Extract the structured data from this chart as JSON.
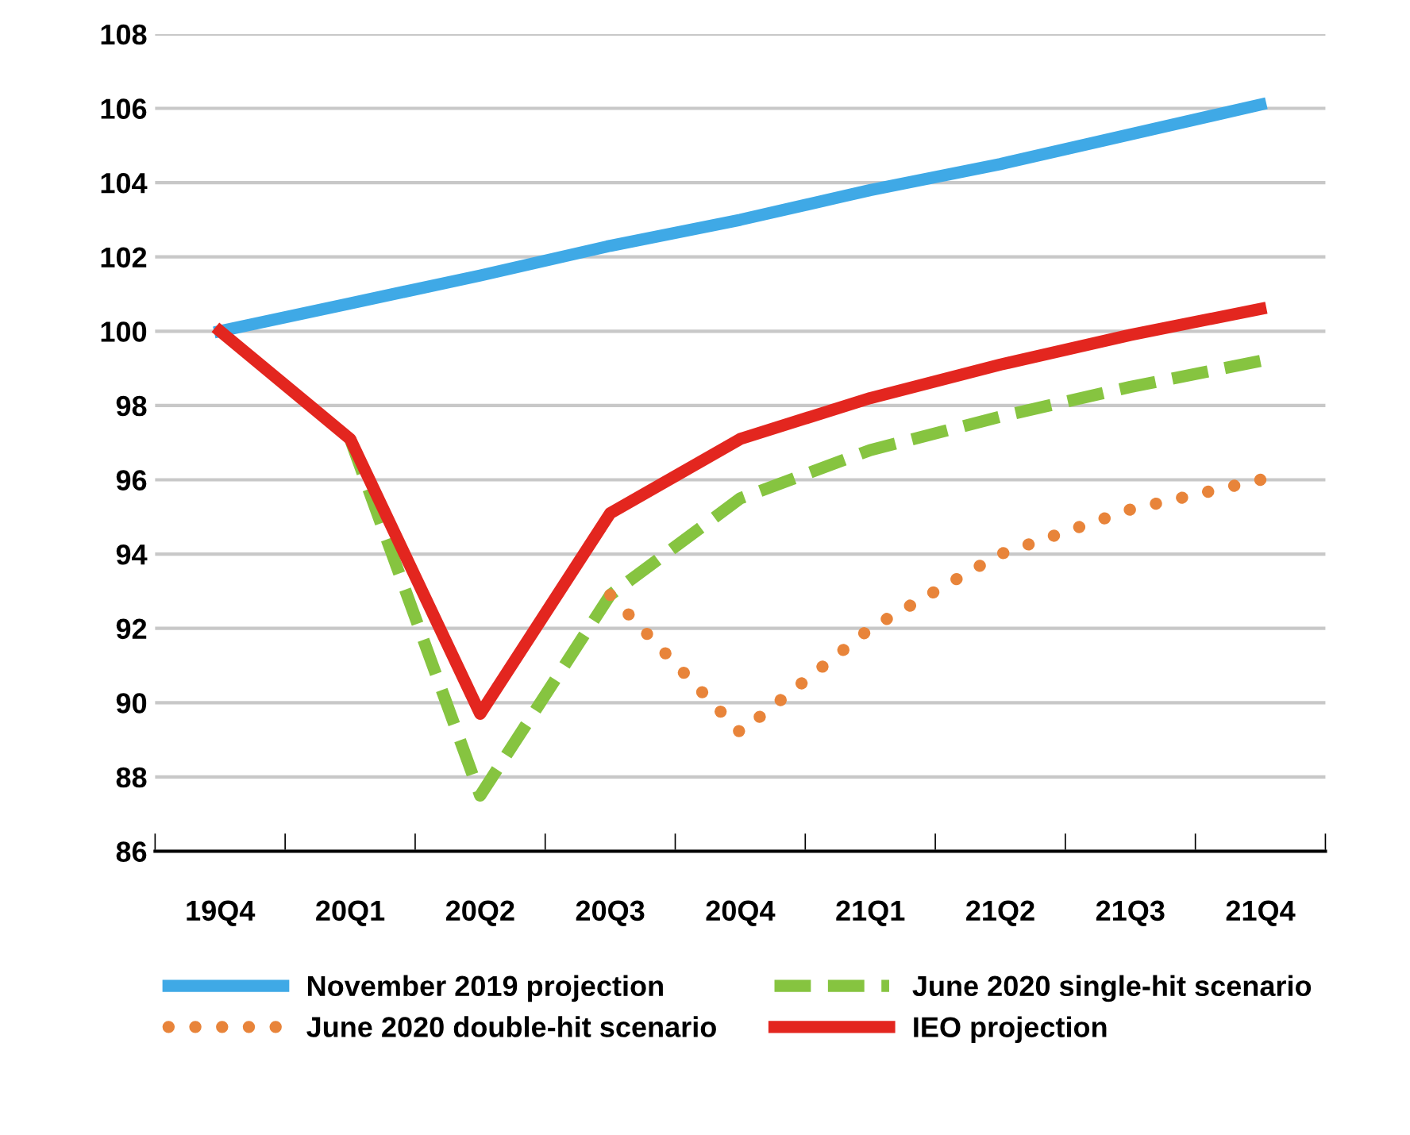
{
  "chart_data": {
    "type": "line",
    "categories": [
      "19Q4",
      "20Q1",
      "20Q2",
      "20Q3",
      "20Q4",
      "21Q1",
      "21Q2",
      "21Q3",
      "21Q4"
    ],
    "series": [
      {
        "name": "November 2019 projection",
        "color": "#3fa9e6",
        "line_style": "solid",
        "values": [
          100,
          100.75,
          101.5,
          102.3,
          103.0,
          103.8,
          104.5,
          105.3,
          106.1
        ]
      },
      {
        "name": "June 2020 single-hit scenario",
        "color": "#86c440",
        "line_style": "dashed",
        "values": [
          null,
          97.1,
          87.5,
          92.9,
          95.5,
          96.8,
          97.7,
          98.5,
          99.2
        ]
      },
      {
        "name": "June 2020 double-hit scenario",
        "color": "#e8843a",
        "line_style": "dotted",
        "values": [
          null,
          null,
          null,
          92.9,
          89.2,
          92.0,
          94.0,
          95.2,
          96.0
        ]
      },
      {
        "name": "IEO projection",
        "color": "#e3261f",
        "line_style": "solid",
        "values": [
          100,
          97.1,
          89.7,
          95.1,
          97.1,
          98.2,
          99.1,
          99.9,
          100.6
        ]
      }
    ],
    "ylim": [
      86,
      108
    ],
    "yticks": [
      86,
      88,
      90,
      92,
      94,
      96,
      98,
      100,
      102,
      104,
      106,
      108
    ],
    "grid": "y",
    "legend": "bottom",
    "marker": "none"
  }
}
